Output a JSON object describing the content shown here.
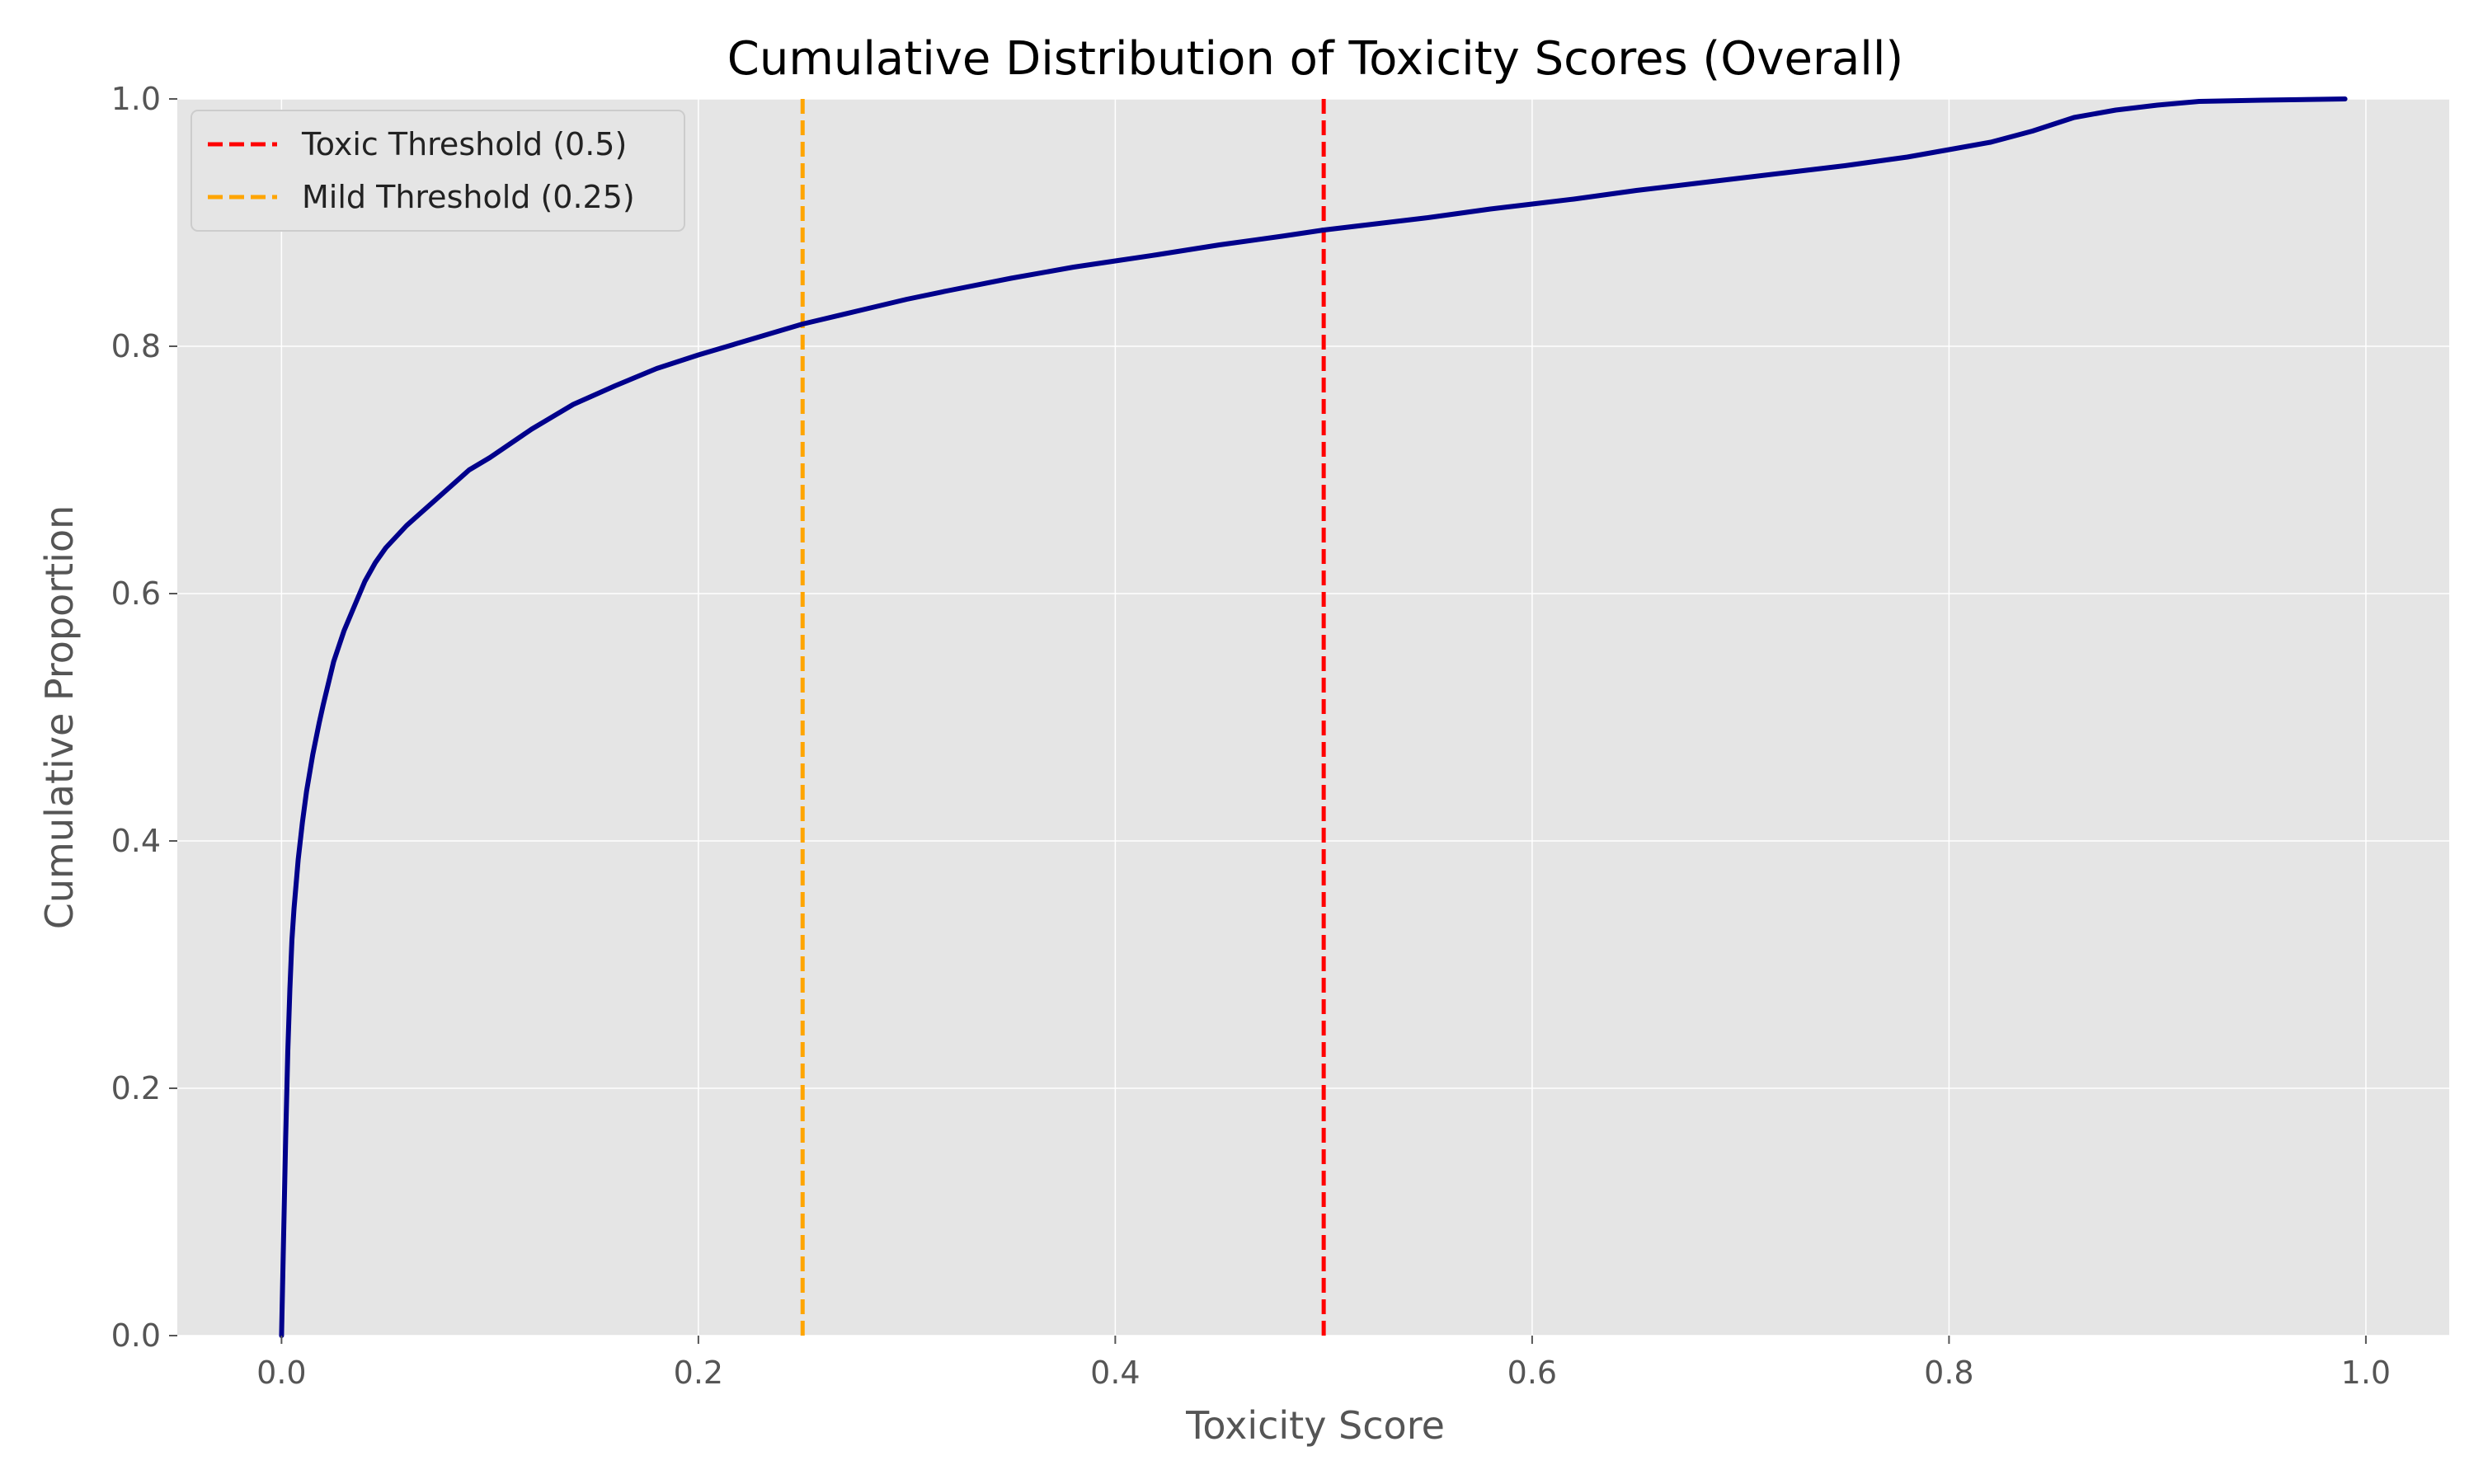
{
  "chart_data": {
    "type": "line",
    "title": "Cumulative Distribution of Toxicity Scores (Overall)",
    "xlabel": "Toxicity Score",
    "ylabel": "Cumulative Proportion",
    "xlim": [
      -0.05,
      1.04
    ],
    "ylim": [
      0.0,
      1.0
    ],
    "x_ticks": [
      0.0,
      0.2,
      0.4,
      0.6,
      0.8,
      1.0
    ],
    "x_tick_labels": [
      "0.0",
      "0.2",
      "0.4",
      "0.6",
      "0.8",
      "1.0"
    ],
    "y_ticks": [
      0.0,
      0.2,
      0.4,
      0.6,
      0.8,
      1.0
    ],
    "y_tick_labels": [
      "0.0",
      "0.2",
      "0.4",
      "0.6",
      "0.8",
      "1.0"
    ],
    "grid": true,
    "background": "#e5e5e5",
    "legend_position": "top-left",
    "series": [
      {
        "color": "#00008b",
        "x": [
          0.0,
          0.001,
          0.002,
          0.003,
          0.004,
          0.005,
          0.006,
          0.008,
          0.01,
          0.012,
          0.015,
          0.018,
          0.02,
          0.025,
          0.03,
          0.035,
          0.04,
          0.045,
          0.05,
          0.06,
          0.07,
          0.08,
          0.09,
          0.1,
          0.12,
          0.14,
          0.16,
          0.18,
          0.2,
          0.22,
          0.25,
          0.28,
          0.3,
          0.32,
          0.35,
          0.38,
          0.4,
          0.42,
          0.45,
          0.48,
          0.5,
          0.52,
          0.55,
          0.58,
          0.6,
          0.62,
          0.65,
          0.68,
          0.7,
          0.72,
          0.75,
          0.78,
          0.8,
          0.82,
          0.84,
          0.86,
          0.88,
          0.9,
          0.92,
          0.95,
          0.99
        ],
        "y": [
          0.0,
          0.08,
          0.16,
          0.23,
          0.28,
          0.32,
          0.345,
          0.385,
          0.415,
          0.44,
          0.47,
          0.495,
          0.51,
          0.545,
          0.57,
          0.59,
          0.61,
          0.625,
          0.637,
          0.655,
          0.67,
          0.685,
          0.7,
          0.71,
          0.733,
          0.753,
          0.768,
          0.782,
          0.793,
          0.803,
          0.818,
          0.83,
          0.838,
          0.845,
          0.855,
          0.864,
          0.869,
          0.874,
          0.882,
          0.889,
          0.894,
          0.898,
          0.904,
          0.911,
          0.915,
          0.919,
          0.926,
          0.932,
          0.936,
          0.94,
          0.946,
          0.953,
          0.959,
          0.965,
          0.974,
          0.985,
          0.991,
          0.995,
          0.998,
          0.999,
          1.0
        ]
      }
    ],
    "vlines": [
      {
        "x": 0.5,
        "label": "Toxic Threshold (0.5)",
        "color": "#ff0000"
      },
      {
        "x": 0.25,
        "label": "Mild Threshold (0.25)",
        "color": "#ffa500"
      }
    ]
  }
}
